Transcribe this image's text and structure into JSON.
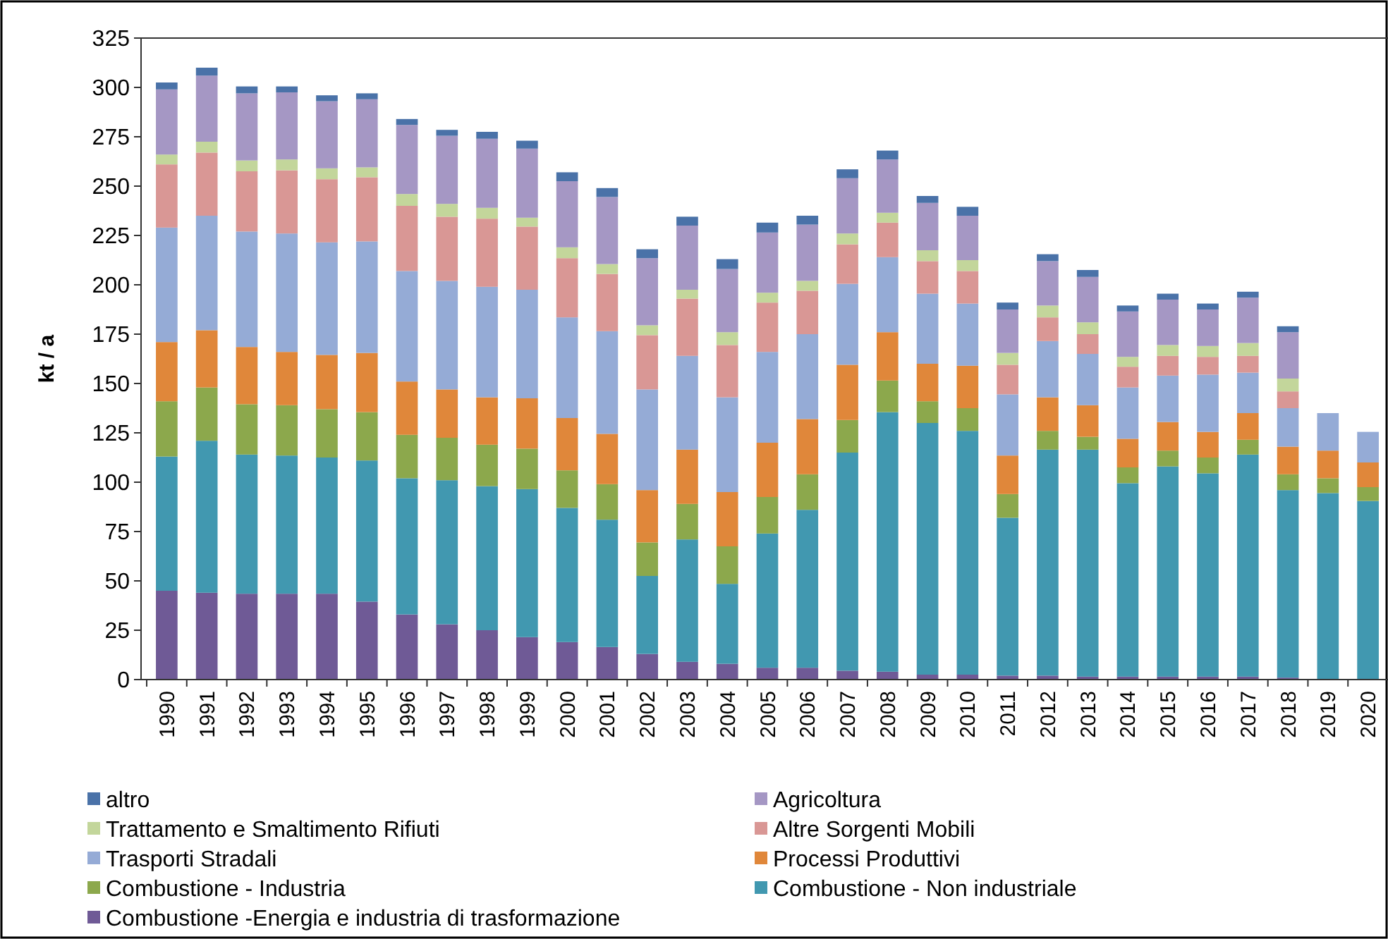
{
  "chart_data": {
    "type": "bar",
    "stacked": true,
    "ylabel": "kt / a",
    "legend": "bottom",
    "grid": false,
    "categories": [
      "1990",
      "1991",
      "1992",
      "1993",
      "1994",
      "1995",
      "1996",
      "1997",
      "1998",
      "1999",
      "2000",
      "2001",
      "2002",
      "2003",
      "2004",
      "2005",
      "2006",
      "2007",
      "2008",
      "2009",
      "2010",
      "2011",
      "2012",
      "2013",
      "2014",
      "2015",
      "2016",
      "2017",
      "2018",
      "2019",
      "2020"
    ],
    "ylim": [
      0,
      325
    ],
    "yticks": [
      0,
      25,
      50,
      75,
      100,
      125,
      150,
      175,
      200,
      225,
      250,
      275,
      300,
      325
    ],
    "series": [
      {
        "name": "Combustione -Energia e industria di trasformazione",
        "color": "#6f5a96",
        "values": [
          45,
          44,
          43.5,
          43.5,
          43.5,
          39.5,
          33,
          28,
          25,
          21.5,
          19,
          16.5,
          13,
          9,
          8,
          6,
          6,
          4.5,
          4,
          2.5,
          2.5,
          2,
          2,
          1.5,
          1.5,
          1.5,
          1.5,
          1.5,
          1,
          null,
          null
        ]
      },
      {
        "name": "Combustione - Non industriale",
        "color": "#4198b0",
        "values": [
          68,
          77,
          70.5,
          70,
          69,
          71.5,
          69,
          73,
          73,
          75,
          68,
          64.5,
          39.5,
          62,
          40.5,
          68,
          80,
          110.5,
          131.5,
          127.5,
          123.5,
          80,
          114.5,
          115,
          98,
          106.5,
          103,
          112.5,
          95,
          94.5,
          90.5
        ]
      },
      {
        "name": "Combustione - Industria",
        "color": "#8ca84c",
        "values": [
          28,
          27,
          25.5,
          25.5,
          24.5,
          24.5,
          22,
          21.5,
          21,
          20.5,
          19,
          18,
          17,
          18,
          19,
          18.5,
          18,
          16.5,
          16,
          11,
          11.5,
          12,
          9.5,
          6.5,
          8,
          8,
          8,
          7.5,
          8,
          7.5,
          7
        ]
      },
      {
        "name": "Processi Produttivi",
        "color": "#e0873a",
        "values": [
          30,
          29,
          29,
          27,
          27.5,
          30,
          27,
          24.5,
          24,
          25.5,
          26.5,
          25.5,
          26.5,
          27.5,
          27.5,
          27.5,
          28,
          28,
          24.5,
          19,
          21.5,
          19.5,
          17,
          16,
          14.5,
          14.5,
          13,
          13.5,
          14,
          14,
          12.5
        ]
      },
      {
        "name": "Trasporti Stradali",
        "color": "#95abd6",
        "values": [
          58,
          58,
          58.5,
          60,
          57,
          56.5,
          56,
          55,
          56,
          55,
          51,
          52,
          51,
          47.5,
          48,
          46,
          43,
          41,
          38,
          35.5,
          31.5,
          31,
          28.5,
          26,
          26,
          23.5,
          29,
          20.5,
          19.5,
          19,
          15.5
        ]
      },
      {
        "name": "Altre Sorgenti Mobili",
        "color": "#d99795",
        "values": [
          32,
          32,
          30.5,
          32,
          32,
          32.5,
          33,
          32.5,
          34.5,
          32,
          30,
          29,
          27.5,
          29,
          26.5,
          25,
          22,
          20,
          17.5,
          16.5,
          16.5,
          15,
          12,
          10,
          10.5,
          10,
          9,
          8.5,
          8.5,
          null,
          null
        ]
      },
      {
        "name": "Trattamento e Smaltimento Rifiuti",
        "color": "#c3d69b",
        "values": [
          5,
          5.5,
          5.5,
          5.5,
          5.5,
          5,
          6,
          6.5,
          5.5,
          4.5,
          5.5,
          5,
          5,
          4.5,
          6.5,
          5,
          5,
          5.5,
          5,
          5.5,
          5.5,
          6,
          6,
          6,
          5,
          5.5,
          5.5,
          6.5,
          6.5,
          null,
          null
        ]
      },
      {
        "name": "Agricoltura",
        "color": "#a597c4",
        "values": [
          33,
          33.5,
          34,
          34,
          34,
          34.5,
          35,
          34.5,
          35,
          35,
          33.5,
          34,
          34,
          32.5,
          32,
          30.5,
          28.5,
          28,
          27,
          24,
          22.5,
          22,
          22.5,
          23,
          23,
          23,
          18.5,
          23,
          23.5,
          null,
          null
        ]
      },
      {
        "name": "altro",
        "color": "#4a72a8",
        "values": [
          3.5,
          4,
          3.5,
          3,
          3,
          3,
          3,
          3,
          3.5,
          4,
          4.5,
          4.5,
          4.5,
          4.5,
          5,
          5,
          4.5,
          4.5,
          4.5,
          3.5,
          4.5,
          3.5,
          3.5,
          3.5,
          3,
          3,
          3,
          3,
          3,
          null,
          null
        ]
      }
    ]
  }
}
